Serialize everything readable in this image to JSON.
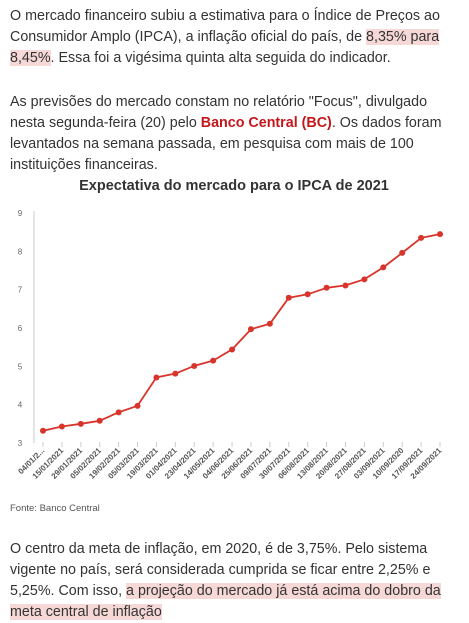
{
  "paragraph1": {
    "before": "O mercado financeiro subiu a estimativa para o Índice de Preços ao Consumidor Amplo (IPCA), a inflação oficial do país, de ",
    "highlight": "8,35% para 8,45%",
    "after": ". Essa foi a vigésima quinta alta seguida do indicador."
  },
  "paragraph2": {
    "before": "As previsões do mercado constam no relatório \"Focus\", divulgado nesta segunda-feira (20) pelo ",
    "link": "Banco Central (BC)",
    "after": ". Os dados foram levantados na semana passada, em pesquisa com mais de 100 instituições financeiras."
  },
  "chart_data": {
    "type": "line",
    "title": "Expectativa do mercado para o IPCA de 2021",
    "xlabel": "",
    "ylabel": "",
    "ylim": [
      3,
      9
    ],
    "yticks": [
      3,
      4,
      5,
      6,
      7,
      8,
      9
    ],
    "grid": false,
    "categories": [
      "04/01/2...",
      "15/01/2021",
      "29/01/2021",
      "05/02/2021",
      "19/02/2021",
      "05/03/2021",
      "19/03/2021",
      "01/04/2021",
      "23/04/2021",
      "14/05/2021",
      "04/06/2021",
      "25/06/2021",
      "09/07/2021",
      "30/07/2021",
      "06/08/2021",
      "13/08/2021",
      "20/08/2021",
      "27/08/2021",
      "03/09/2021",
      "10/09/2020",
      "17/09/2021",
      "24/09/2021"
    ],
    "values": [
      3.32,
      3.43,
      3.5,
      3.58,
      3.8,
      3.97,
      4.71,
      4.81,
      5.01,
      5.15,
      5.44,
      5.97,
      6.11,
      6.79,
      6.88,
      7.05,
      7.11,
      7.27,
      7.58,
      7.96,
      8.35,
      8.45
    ],
    "color": "#d9342b"
  },
  "source": "Fonte: Banco Central",
  "paragraph3": {
    "before": "O centro da meta de inflação, em 2020, é de 3,75%. Pelo sistema vigente no país, será considerada cumprida se ficar entre 2,25% e 5,25%. Com isso, ",
    "highlight": "a projeção do mercado já está acima do dobro da meta central de inflação"
  }
}
